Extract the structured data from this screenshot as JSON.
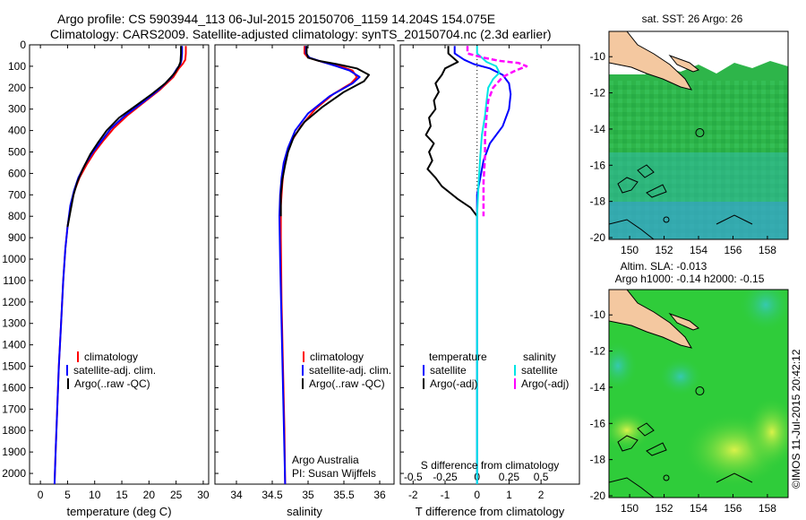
{
  "header": {
    "line1": "Argo profile: CS 5903944_113 06-Jul-2015 20150706_1159 14.204S 154.075E",
    "line2": "Climatology: CARS2009. Satellite-adjusted climatology: synTS_20150704.nc (2.3d earlier)"
  },
  "credit": "©IMOS 11-Jul-2015 20:42:12",
  "colors": {
    "climatology": "#ff0000",
    "satellite": "#0000ff",
    "argo": "#000000",
    "sal_satellite": "#00e5e5",
    "sal_argo": "#ff00ff",
    "land": "#f4c8a0",
    "ocean_sst": "#2eb54a",
    "ocean_sla": "#1fc93a"
  },
  "chart_data": [
    {
      "type": "line",
      "name": "temperature",
      "xlabel": "temperature (deg C)",
      "xlim": [
        -2,
        31
      ],
      "ylim": [
        2050,
        0
      ],
      "xticks": [
        0,
        5,
        10,
        15,
        20,
        25,
        30
      ],
      "yticks": [
        0,
        100,
        200,
        300,
        400,
        500,
        600,
        700,
        800,
        900,
        1000,
        1100,
        1200,
        1300,
        1400,
        1500,
        1600,
        1700,
        1800,
        1900,
        2000
      ],
      "legend": {
        "placement": "bottom-left",
        "entries": [
          "climatology",
          "satellite-adj. clim.",
          "Argo(..raw -QC)"
        ]
      },
      "series": [
        {
          "name": "climatology",
          "color": "#ff0000",
          "points": [
            [
              26.8,
              5
            ],
            [
              26.8,
              40
            ],
            [
              26.7,
              70
            ],
            [
              26.2,
              90
            ],
            [
              25.5,
              110
            ],
            [
              24.5,
              150
            ],
            [
              22,
              210
            ],
            [
              19,
              270
            ],
            [
              16,
              330
            ],
            [
              13.5,
              390
            ],
            [
              11.5,
              450
            ],
            [
              10,
              500
            ],
            [
              8.5,
              560
            ],
            [
              7.2,
              620
            ],
            [
              6.3,
              680
            ],
            [
              5.6,
              750
            ],
            [
              5.0,
              850
            ],
            [
              4.6,
              950
            ],
            [
              4.2,
              1100
            ],
            [
              3.8,
              1300
            ],
            [
              3.4,
              1500
            ],
            [
              3.1,
              1700
            ],
            [
              2.8,
              1900
            ],
            [
              2.6,
              2050
            ]
          ]
        },
        {
          "name": "satellite-adj. clim.",
          "color": "#0000ff",
          "points": [
            [
              26.1,
              5
            ],
            [
              26.1,
              40
            ],
            [
              26.0,
              70
            ],
            [
              25.8,
              90
            ],
            [
              25.2,
              110
            ],
            [
              24.2,
              150
            ],
            [
              21.8,
              210
            ],
            [
              18.8,
              270
            ],
            [
              15.6,
              330
            ],
            [
              13,
              390
            ],
            [
              11.2,
              450
            ],
            [
              9.7,
              500
            ],
            [
              8.2,
              560
            ],
            [
              7.0,
              620
            ],
            [
              6.2,
              680
            ],
            [
              5.5,
              750
            ],
            [
              5.0,
              850
            ],
            [
              4.6,
              950
            ],
            [
              4.2,
              1100
            ],
            [
              3.8,
              1300
            ],
            [
              3.4,
              1500
            ],
            [
              3.1,
              1700
            ],
            [
              2.8,
              1900
            ],
            [
              2.6,
              2050
            ]
          ]
        },
        {
          "name": "Argo(..raw -QC)",
          "color": "#000000",
          "points": [
            [
              25.9,
              5
            ],
            [
              25.9,
              40
            ],
            [
              25.8,
              80
            ],
            [
              25.5,
              100
            ],
            [
              24.8,
              130
            ],
            [
              23,
              180
            ],
            [
              20.5,
              230
            ],
            [
              17.8,
              280
            ],
            [
              14.5,
              340
            ],
            [
              12.2,
              400
            ],
            [
              10.5,
              460
            ],
            [
              9.2,
              510
            ],
            [
              7.8,
              580
            ],
            [
              6.8,
              640
            ],
            [
              6.1,
              700
            ],
            [
              5.5,
              780
            ],
            [
              5.0,
              850
            ]
          ]
        }
      ]
    },
    {
      "type": "line",
      "name": "salinity",
      "xlabel": "salinity",
      "xlim": [
        33.7,
        36.2
      ],
      "ylim": [
        2050,
        0
      ],
      "xticks": [
        34,
        34.5,
        35,
        35.5,
        36
      ],
      "legend": {
        "placement": "bottom-right",
        "entries": [
          "climatology",
          "satellite-adj. clim.",
          "Argo(..raw -QC)"
        ]
      },
      "annotation": [
        "Argo Australia",
        "PI: Susan Wijffels"
      ],
      "series": [
        {
          "name": "climatology",
          "color": "#ff0000",
          "points": [
            [
              34.95,
              5
            ],
            [
              34.95,
              40
            ],
            [
              35.0,
              60
            ],
            [
              35.2,
              80
            ],
            [
              35.45,
              100
            ],
            [
              35.62,
              120
            ],
            [
              35.68,
              150
            ],
            [
              35.6,
              180
            ],
            [
              35.35,
              230
            ],
            [
              35.1,
              300
            ],
            [
              34.9,
              380
            ],
            [
              34.75,
              460
            ],
            [
              34.7,
              520
            ],
            [
              34.66,
              580
            ],
            [
              34.64,
              650
            ],
            [
              34.62,
              750
            ],
            [
              34.62,
              900
            ],
            [
              34.63,
              1200
            ],
            [
              34.65,
              1500
            ],
            [
              34.67,
              1800
            ],
            [
              34.68,
              2050
            ]
          ]
        },
        {
          "name": "satellite-adj. clim.",
          "color": "#0000ff",
          "points": [
            [
              34.97,
              5
            ],
            [
              34.97,
              40
            ],
            [
              35.02,
              60
            ],
            [
              35.2,
              80
            ],
            [
              35.4,
              100
            ],
            [
              35.58,
              120
            ],
            [
              35.72,
              150
            ],
            [
              35.62,
              180
            ],
            [
              35.3,
              240
            ],
            [
              35.0,
              320
            ],
            [
              34.82,
              400
            ],
            [
              34.72,
              480
            ],
            [
              34.66,
              550
            ],
            [
              34.63,
              620
            ],
            [
              34.61,
              700
            ],
            [
              34.6,
              800
            ],
            [
              34.61,
              1000
            ],
            [
              34.63,
              1300
            ],
            [
              34.65,
              1600
            ],
            [
              34.67,
              1900
            ],
            [
              34.68,
              2050
            ]
          ]
        },
        {
          "name": "Argo(..raw -QC)",
          "color": "#000000",
          "points": [
            [
              34.98,
              5
            ],
            [
              34.98,
              40
            ],
            [
              35.0,
              60
            ],
            [
              35.15,
              75
            ],
            [
              35.4,
              90
            ],
            [
              35.68,
              110
            ],
            [
              35.85,
              140
            ],
            [
              35.78,
              170
            ],
            [
              35.5,
              220
            ],
            [
              35.2,
              290
            ],
            [
              34.95,
              360
            ],
            [
              34.8,
              430
            ],
            [
              34.72,
              500
            ],
            [
              34.68,
              560
            ],
            [
              34.64,
              630
            ],
            [
              34.62,
              700
            ],
            [
              34.62,
              800
            ]
          ]
        }
      ]
    },
    {
      "type": "line",
      "name": "difference",
      "xlabel": "T difference from climatology",
      "x2label": "S difference from climatology",
      "xlim": [
        -2.4,
        3.2
      ],
      "ylim": [
        2050,
        0
      ],
      "xticks": [
        -2,
        -1,
        0,
        1,
        2
      ],
      "x2ticks": [
        "-0.5",
        "-0.25",
        "0",
        "0.25",
        "0.5"
      ],
      "x2_values": [
        -0.5,
        -0.25,
        0,
        0.25,
        0.5
      ],
      "x2_scale": 4,
      "legend": {
        "placement": "bottom-center",
        "groups": [
          "temperature",
          "salinity"
        ],
        "entries": [
          "satellite",
          "Argo(-adj)",
          "satellite",
          "Argo(-adj)"
        ]
      },
      "series": [
        {
          "name": "temperature satellite",
          "color": "#0000ff",
          "points": [
            [
              -0.7,
              5
            ],
            [
              -0.7,
              40
            ],
            [
              -0.4,
              70
            ],
            [
              -0.1,
              90
            ],
            [
              0.4,
              110
            ],
            [
              0.8,
              140
            ],
            [
              1.0,
              180
            ],
            [
              1.05,
              230
            ],
            [
              1.0,
              300
            ],
            [
              0.8,
              380
            ],
            [
              0.4,
              460
            ],
            [
              0.2,
              540
            ],
            [
              0.1,
              620
            ],
            [
              0.0,
              700
            ],
            [
              0.0,
              800
            ],
            [
              0.0,
              2050
            ]
          ]
        },
        {
          "name": "temperature Argo(-adj)",
          "color": "#000000",
          "points": [
            [
              -0.9,
              5
            ],
            [
              -0.9,
              40
            ],
            [
              -0.6,
              80
            ],
            [
              -1.0,
              110
            ],
            [
              -1.1,
              140
            ],
            [
              -1.3,
              180
            ],
            [
              -1.2,
              220
            ],
            [
              -1.35,
              260
            ],
            [
              -1.3,
              300
            ],
            [
              -1.5,
              340
            ],
            [
              -1.45,
              380
            ],
            [
              -1.6,
              420
            ],
            [
              -1.35,
              460
            ],
            [
              -1.5,
              500
            ],
            [
              -1.4,
              540
            ],
            [
              -1.55,
              580
            ],
            [
              -1.3,
              620
            ],
            [
              -1.1,
              660
            ],
            [
              -0.6,
              720
            ],
            [
              -0.2,
              760
            ],
            [
              0.0,
              800
            ]
          ]
        },
        {
          "name": "salinity satellite",
          "color": "#00e5e5",
          "points": [
            [
              0.0,
              5
            ],
            [
              0.0,
              40
            ],
            [
              0.3,
              80
            ],
            [
              0.6,
              100
            ],
            [
              0.7,
              130
            ],
            [
              0.5,
              160
            ],
            [
              0.35,
              200
            ],
            [
              0.3,
              260
            ],
            [
              0.25,
              330
            ],
            [
              0.15,
              420
            ],
            [
              0.1,
              520
            ],
            [
              0.05,
              640
            ],
            [
              0.0,
              800
            ],
            [
              0.0,
              2050
            ]
          ]
        },
        {
          "name": "salinity Argo(-adj)",
          "color": "#ff00ff",
          "points": [
            [
              -0.3,
              5
            ],
            [
              -0.3,
              40
            ],
            [
              0.2,
              60
            ],
            [
              0.7,
              75
            ],
            [
              1.3,
              85
            ],
            [
              1.55,
              100
            ],
            [
              1.2,
              120
            ],
            [
              0.8,
              150
            ],
            [
              0.5,
              200
            ],
            [
              0.35,
              260
            ],
            [
              0.3,
              330
            ],
            [
              0.25,
              420
            ],
            [
              0.25,
              520
            ],
            [
              0.2,
              640
            ],
            [
              0.2,
              800
            ]
          ]
        }
      ]
    },
    {
      "type": "heatmap",
      "name": "sst-map",
      "title": "sat. SST: 26 Argo: 26",
      "xlim": [
        148.8,
        159.2
      ],
      "ylim": [
        -20.1,
        -8.6
      ],
      "xticks": [
        150,
        152,
        154,
        156,
        158
      ],
      "yticks": [
        -10,
        -12,
        -14,
        -16,
        -18,
        -20
      ],
      "marker": {
        "lon": 154.075,
        "lat": -14.204
      }
    },
    {
      "type": "heatmap",
      "name": "sla-map",
      "title": "Altim. SLA: -0.013",
      "subtitle": "Argo h1000: -0.14 h2000: -0.15",
      "xlim": [
        148.8,
        159.2
      ],
      "ylim": [
        -20.1,
        -8.6
      ],
      "xticks": [
        150,
        152,
        154,
        156,
        158
      ],
      "yticks": [
        -10,
        -12,
        -14,
        -16,
        -18,
        -20
      ],
      "marker": {
        "lon": 154.075,
        "lat": -14.204
      }
    }
  ]
}
